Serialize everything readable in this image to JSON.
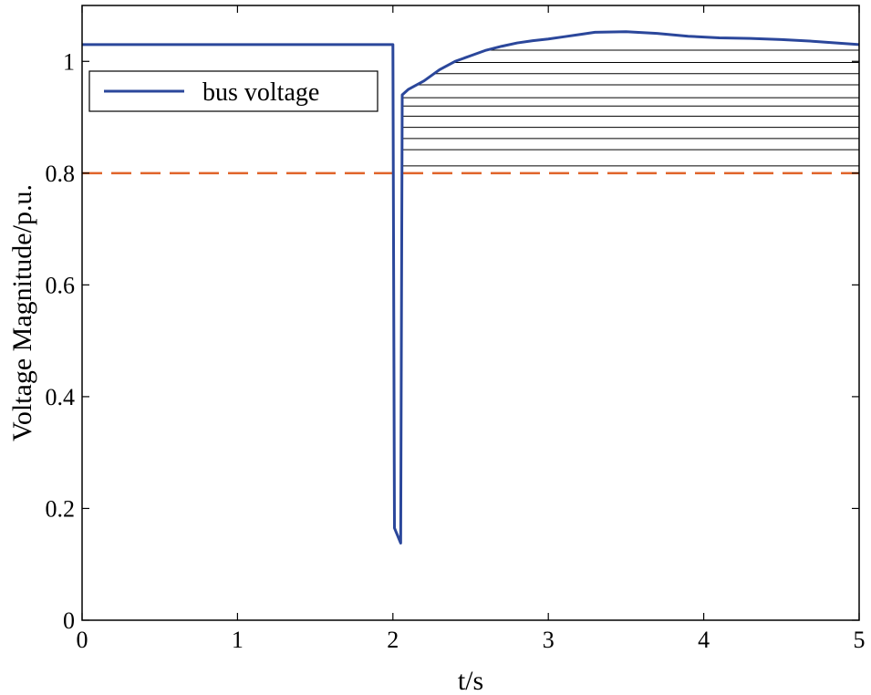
{
  "chart_data": {
    "type": "line",
    "title": "",
    "xlabel": "t/s",
    "ylabel": "Voltage Magnitude/p.u.",
    "xlim": [
      0,
      5
    ],
    "ylim": [
      0,
      1.1
    ],
    "x_ticks": [
      0,
      1,
      2,
      3,
      4,
      5
    ],
    "x_tick_labels": [
      "0",
      "1",
      "2",
      "3",
      "4",
      "5"
    ],
    "y_ticks": [
      0,
      0.2,
      0.4,
      0.6,
      0.8,
      1.0
    ],
    "y_tick_labels": [
      "0",
      "0.2",
      "0.4",
      "0.6",
      "0.8",
      "1"
    ],
    "grid": false,
    "legend_position": "upper-left",
    "series": [
      {
        "name": "bus voltage",
        "color": "#2b479b",
        "style": "solid",
        "x": [
          0,
          2.0,
          2.01,
          2.05,
          2.06,
          2.1,
          2.2,
          2.3,
          2.4,
          2.5,
          2.6,
          2.7,
          2.8,
          2.9,
          3.0,
          3.1,
          3.2,
          3.3,
          3.5,
          3.7,
          3.9,
          4.1,
          4.3,
          4.5,
          4.7,
          5.0
        ],
        "y": [
          1.03,
          1.03,
          0.165,
          0.138,
          0.94,
          0.95,
          0.965,
          0.985,
          1.0,
          1.01,
          1.02,
          1.027,
          1.033,
          1.037,
          1.04,
          1.044,
          1.048,
          1.052,
          1.053,
          1.05,
          1.045,
          1.042,
          1.041,
          1.039,
          1.036,
          1.03
        ]
      },
      {
        "name": "",
        "color": "#e0642a",
        "style": "dashed",
        "x": [
          0,
          5
        ],
        "y": [
          0.8,
          0.8
        ]
      }
    ],
    "hatch": {
      "x_start": 2.06,
      "x_end": 5.0,
      "y_levels": [
        0.813,
        0.842,
        0.862,
        0.882,
        0.902,
        0.92,
        0.935,
        0.958,
        0.978,
        0.998,
        1.02
      ]
    }
  }
}
